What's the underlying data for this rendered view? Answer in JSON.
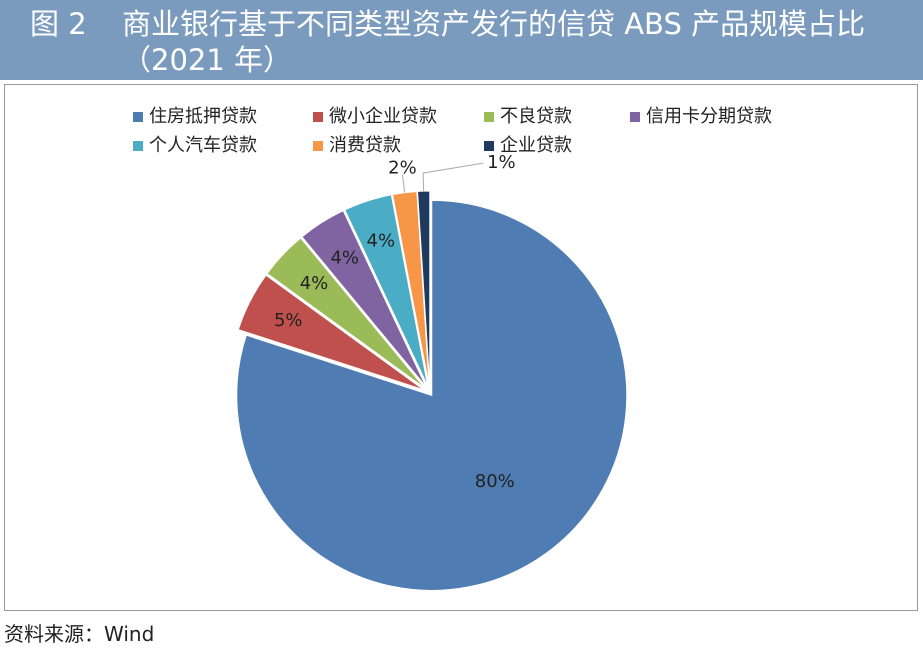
{
  "figure_label": "图 2",
  "chart_data": {
    "type": "pie",
    "title": "商业银行基于不同类型资产发行的信贷 ABS 产品规模占比（2021 年）",
    "categories": [
      "住房抵押贷款",
      "微小企业贷款",
      "不良贷款",
      "信用卡分期贷款",
      "个人汽车贷款",
      "消费贷款",
      "企业贷款"
    ],
    "values": [
      80,
      5,
      4,
      4,
      4,
      2,
      1
    ],
    "value_labels": [
      "80%",
      "5%",
      "4%",
      "4%",
      "4%",
      "2%",
      "1%"
    ],
    "colors": [
      "#4f7db3",
      "#c0504d",
      "#9bbb59",
      "#8064a2",
      "#4bacc6",
      "#f79646",
      "#1f3a5f"
    ],
    "legend": "top"
  },
  "source": "资料来源：Wind"
}
